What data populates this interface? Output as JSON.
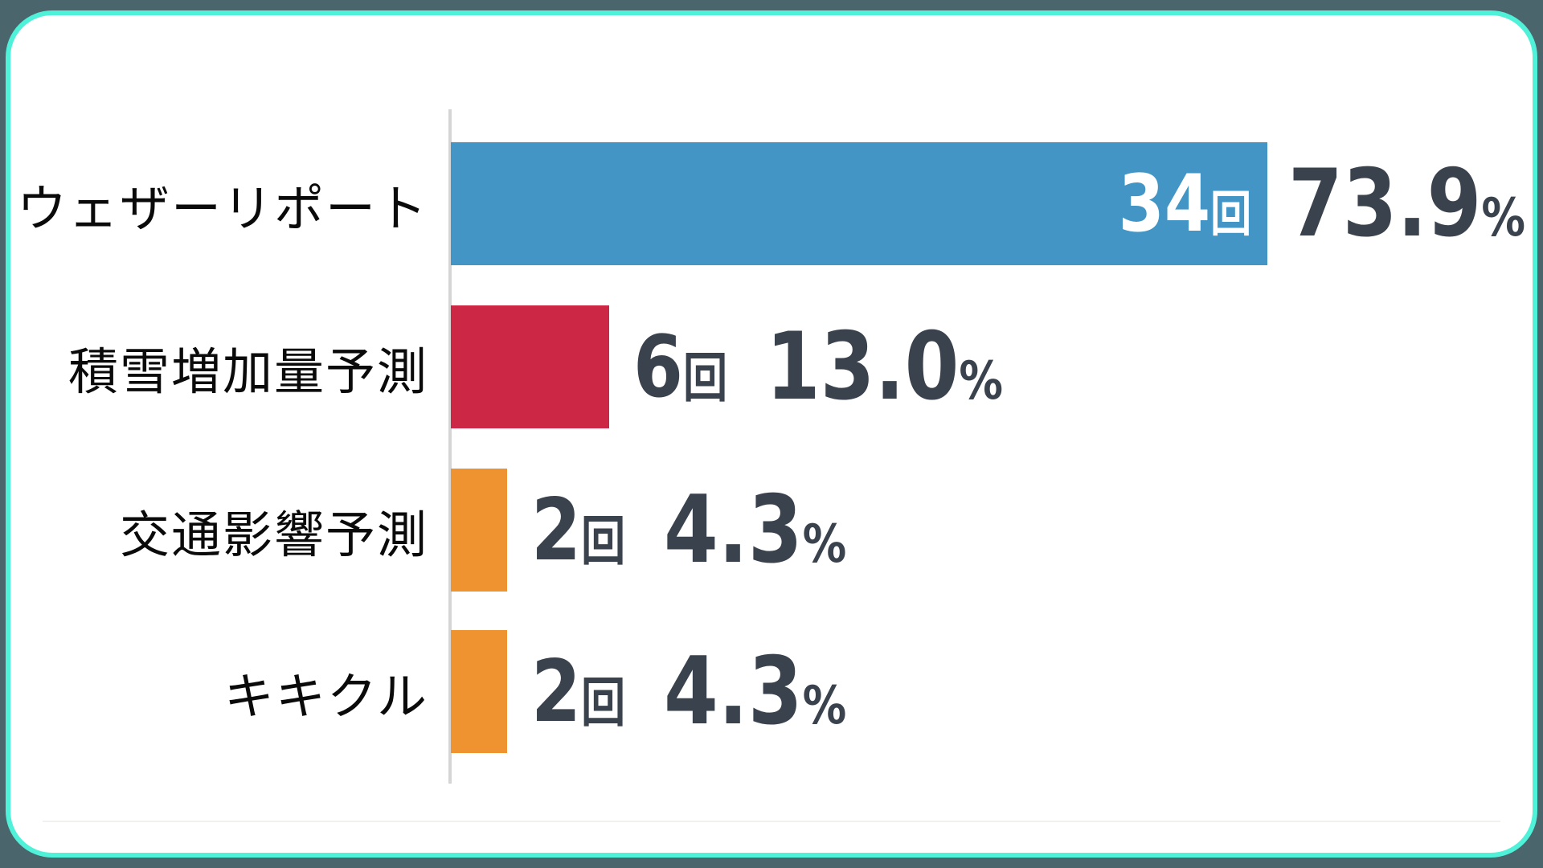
{
  "chart_data": {
    "type": "bar",
    "orientation": "horizontal",
    "title": "",
    "categories": [
      "ウェザーリポート",
      "積雪増加量予測",
      "交通影響予測",
      "キキクル"
    ],
    "counts": [
      34,
      6,
      2,
      2
    ],
    "percents": [
      73.9,
      13.0,
      4.3,
      4.3
    ],
    "count_unit": "回",
    "percent_unit": "%",
    "xlim_pct": [
      0,
      73.9
    ],
    "grid": false,
    "legend": false,
    "rows": [
      {
        "label": "ウェザーリポート",
        "count": "34",
        "count_unit": "回",
        "pct": "73.9",
        "pct_unit": "%",
        "color": "#4295C4",
        "count_inside_bar": true
      },
      {
        "label": "積雪増加量予測",
        "count": "6",
        "count_unit": "回",
        "pct": "13.0",
        "pct_unit": "%",
        "color": "#CC2845",
        "count_inside_bar": false
      },
      {
        "label": "交通影響予測",
        "count": "2",
        "count_unit": "回",
        "pct": "4.3",
        "pct_unit": "%",
        "color": "#EF9230",
        "count_inside_bar": false
      },
      {
        "label": "キキクル",
        "count": "2",
        "count_unit": "回",
        "pct": "4.3",
        "pct_unit": "%",
        "color": "#EF9230",
        "count_inside_bar": false
      }
    ],
    "colors": {
      "bar_blue": "#4295C4",
      "bar_red": "#CC2845",
      "bar_orange": "#EF9230",
      "value_text": "#3A434D",
      "value_text_inside_bar": "#FFFFFF",
      "label_text": "#0A0A0A",
      "axis_line": "#D5D5D5"
    }
  },
  "frame": {
    "outer_background": "#4B656C",
    "card_background": "#FFFFFF",
    "border_color": "#4FF2D9"
  }
}
